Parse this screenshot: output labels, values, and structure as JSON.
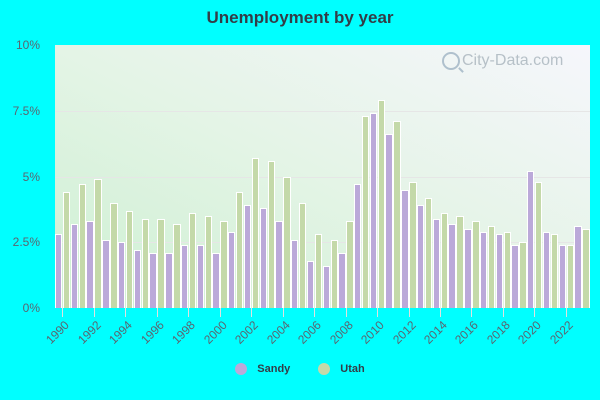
{
  "title": "Unemployment by year",
  "watermark": "City-Data.com",
  "colors": {
    "sandy": "#bba9d9",
    "utah": "#c4d9a9",
    "background": "#00ffff"
  },
  "legend": [
    {
      "label": "Sandy",
      "color": "#bba9d9"
    },
    {
      "label": "Utah",
      "color": "#c4d9a9"
    }
  ],
  "y_ticks": [
    "0%",
    "2.5%",
    "5%",
    "7.5%",
    "10%"
  ],
  "x_ticks": [
    "1990",
    "1992",
    "1994",
    "1996",
    "1998",
    "2000",
    "2002",
    "2004",
    "2006",
    "2008",
    "2010",
    "2012",
    "2014",
    "2016",
    "2018",
    "2020",
    "2022"
  ],
  "chart_data": {
    "type": "bar",
    "title": "Unemployment by year",
    "xlabel": "",
    "ylabel": "",
    "ylim": [
      0,
      10
    ],
    "y_unit": "%",
    "grid": true,
    "legend_position": "bottom",
    "categories": [
      1990,
      1991,
      1992,
      1993,
      1994,
      1995,
      1996,
      1997,
      1998,
      1999,
      2000,
      2001,
      2002,
      2003,
      2004,
      2005,
      2006,
      2007,
      2008,
      2009,
      2010,
      2011,
      2012,
      2013,
      2014,
      2015,
      2016,
      2017,
      2018,
      2019,
      2020,
      2021,
      2022,
      2023
    ],
    "series": [
      {
        "name": "Sandy",
        "values": [
          2.8,
          3.2,
          3.3,
          2.6,
          2.5,
          2.2,
          2.1,
          2.1,
          2.4,
          2.4,
          2.1,
          2.9,
          3.9,
          3.8,
          3.3,
          2.6,
          1.8,
          1.6,
          2.1,
          4.7,
          7.4,
          6.6,
          4.5,
          3.9,
          3.4,
          3.2,
          3.0,
          2.9,
          2.8,
          2.4,
          5.2,
          2.9,
          2.4,
          3.1
        ]
      },
      {
        "name": "Utah",
        "values": [
          4.4,
          4.7,
          4.9,
          4.0,
          3.7,
          3.4,
          3.4,
          3.2,
          3.6,
          3.5,
          3.3,
          4.4,
          5.7,
          5.6,
          5.0,
          4.0,
          2.8,
          2.6,
          3.3,
          7.3,
          7.9,
          7.1,
          4.8,
          4.2,
          3.6,
          3.5,
          3.3,
          3.1,
          2.9,
          2.5,
          4.8,
          2.8,
          2.4,
          3.0
        ]
      }
    ]
  }
}
